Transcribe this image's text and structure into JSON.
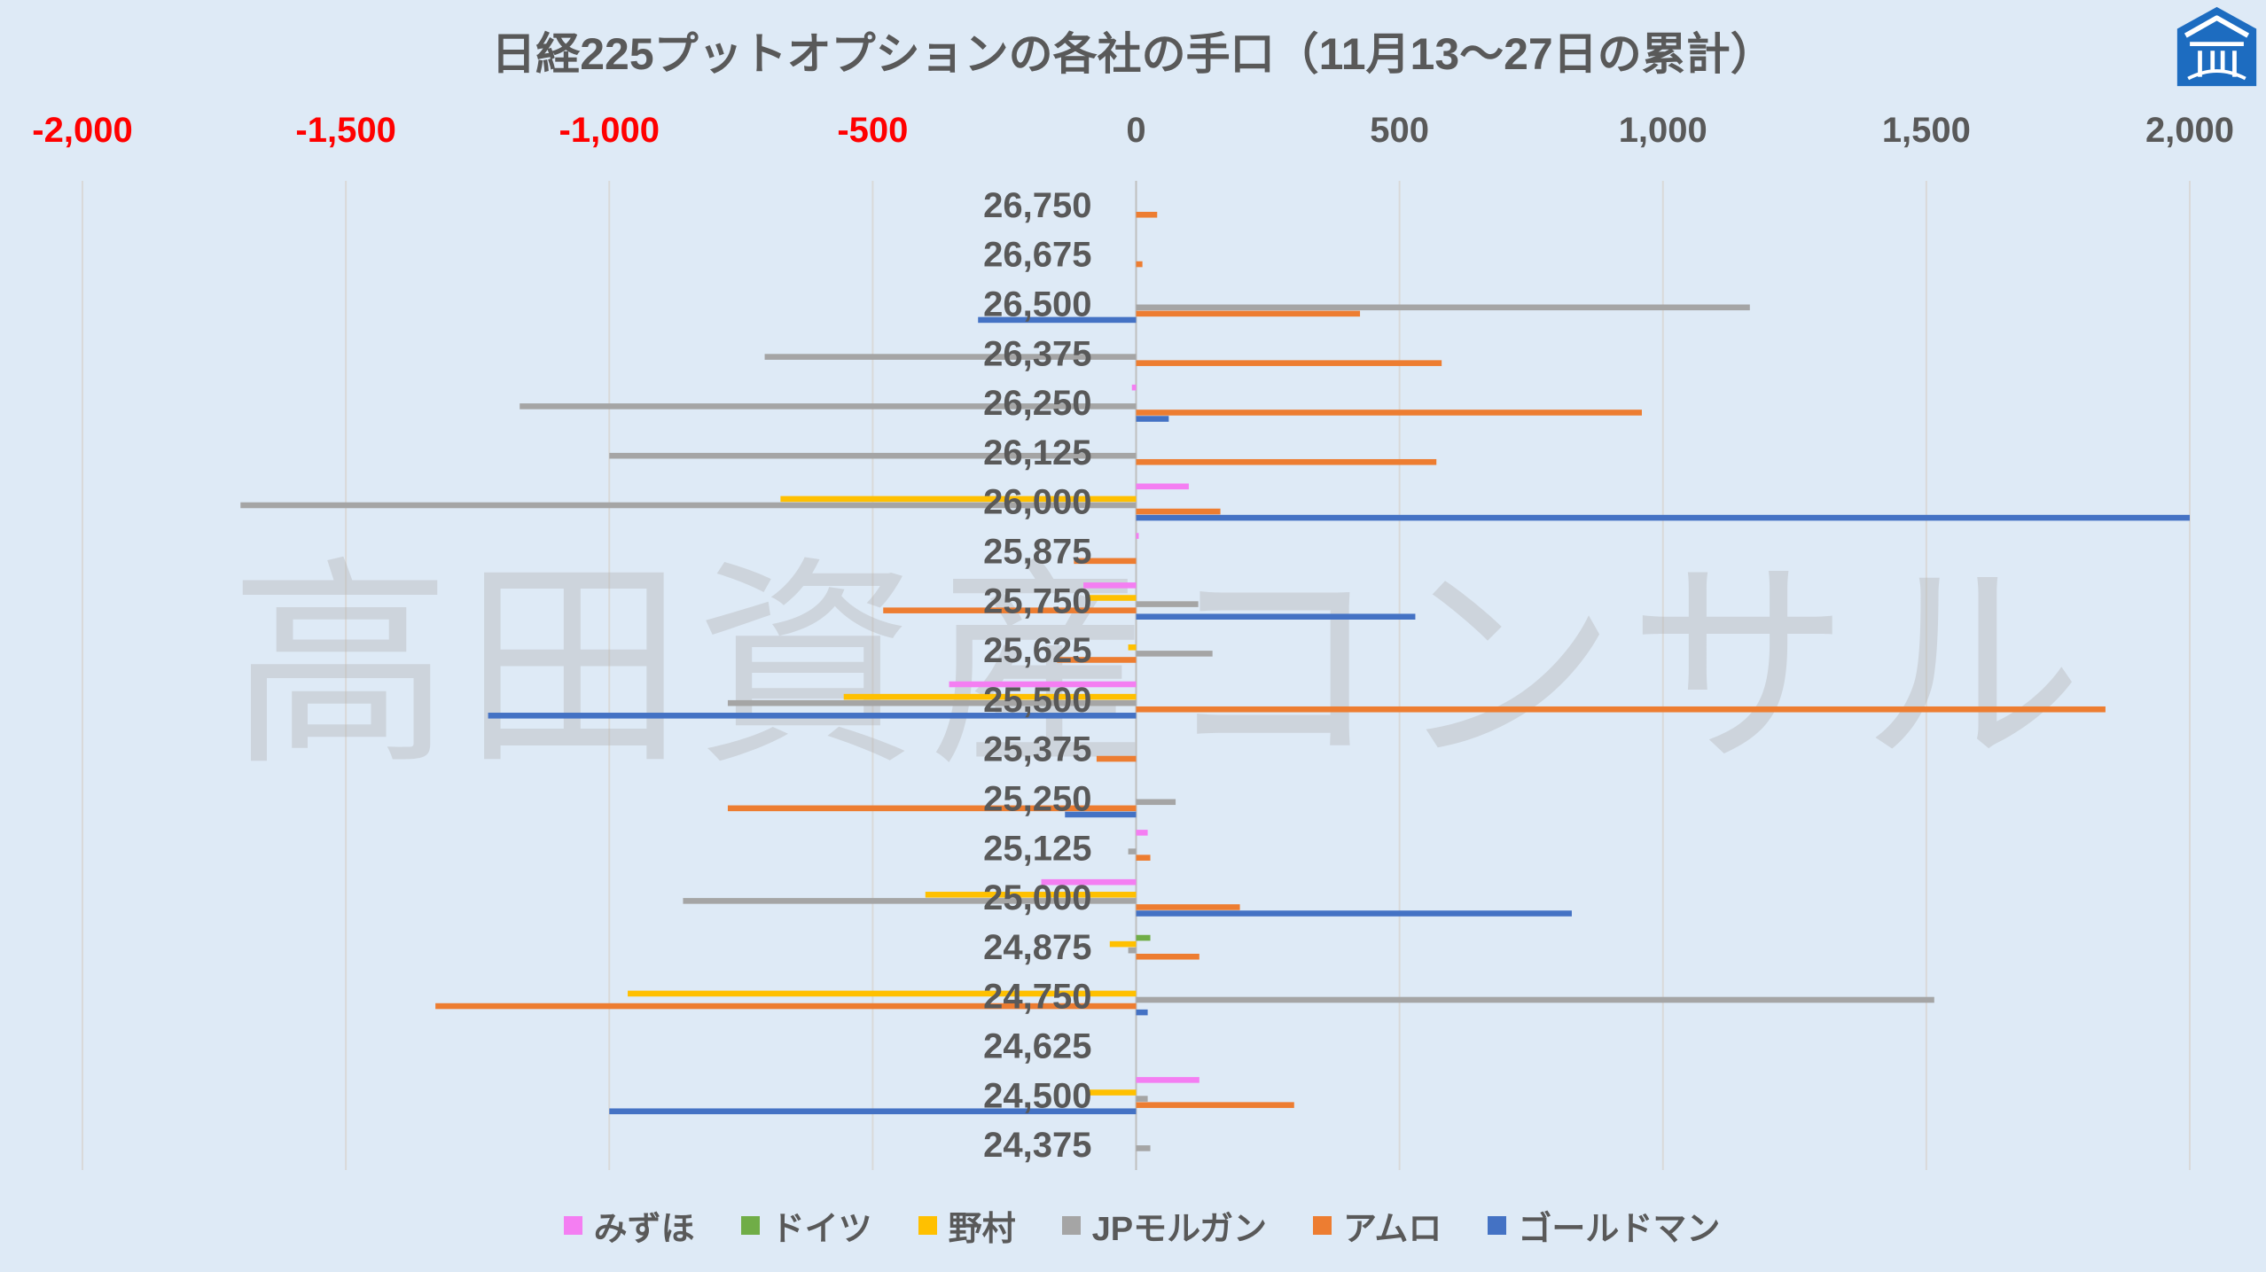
{
  "background": "#DEEAF6",
  "watermark": "高田資産コンサル",
  "logo_icon": "house-roof-logo-icon",
  "chart_data": {
    "type": "bar",
    "orientation": "horizontal",
    "title": "日経225プットオプションの各社の手口（11月13～27日の累計）",
    "xlim": [
      -2000,
      2000
    ],
    "x_tick_step": 500,
    "x_ticks": [
      "-2,000",
      "-1,500",
      "-1,000",
      "-500",
      "0",
      "500",
      "1,000",
      "1,500",
      "2,000"
    ],
    "x_axis_position": "top",
    "grid": true,
    "legend_position": "bottom",
    "tick_colors": {
      "negative": "#FF0000",
      "other": "#595959"
    },
    "categories": [
      "26,750",
      "26,675",
      "26,500",
      "26,375",
      "26,250",
      "26,125",
      "26,000",
      "25,875",
      "25,750",
      "25,625",
      "25,500",
      "25,375",
      "25,250",
      "25,125",
      "25,000",
      "24,875",
      "24,750",
      "24,625",
      "24,500",
      "24,375"
    ],
    "series": [
      {
        "name": "みずほ",
        "color": "#F47EF2",
        "values": [
          0,
          0,
          0,
          0,
          -8,
          0,
          100,
          5,
          -100,
          0,
          -355,
          0,
          0,
          22,
          -180,
          0,
          0,
          0,
          120,
          0
        ]
      },
      {
        "name": "ドイツ",
        "color": "#70AD47",
        "values": [
          0,
          0,
          0,
          0,
          0,
          0,
          0,
          0,
          0,
          0,
          0,
          0,
          0,
          0,
          0,
          27,
          0,
          0,
          0,
          0
        ]
      },
      {
        "name": "野村",
        "color": "#FFC000",
        "values": [
          0,
          0,
          0,
          0,
          0,
          0,
          -675,
          0,
          -90,
          -15,
          -555,
          0,
          0,
          0,
          -400,
          -50,
          -965,
          0,
          -90,
          0
        ]
      },
      {
        "name": "JPモルガン",
        "color": "#A5A5A5",
        "values": [
          0,
          0,
          1165,
          -705,
          -1170,
          -1000,
          -1700,
          0,
          118,
          145,
          -775,
          0,
          75,
          -15,
          -860,
          -15,
          1515,
          0,
          22,
          27
        ]
      },
      {
        "name": "アムロ",
        "color": "#ED7D31",
        "values": [
          40,
          12,
          425,
          580,
          960,
          570,
          160,
          -118,
          -480,
          -150,
          1840,
          -75,
          -775,
          27,
          197,
          120,
          -1330,
          0,
          300,
          0
        ]
      },
      {
        "name": "ゴールドマン",
        "color": "#4472C4",
        "values": [
          0,
          0,
          -300,
          0,
          62,
          0,
          2000,
          0,
          530,
          0,
          -1230,
          0,
          -135,
          0,
          827,
          0,
          22,
          0,
          -1000,
          0
        ]
      }
    ]
  }
}
